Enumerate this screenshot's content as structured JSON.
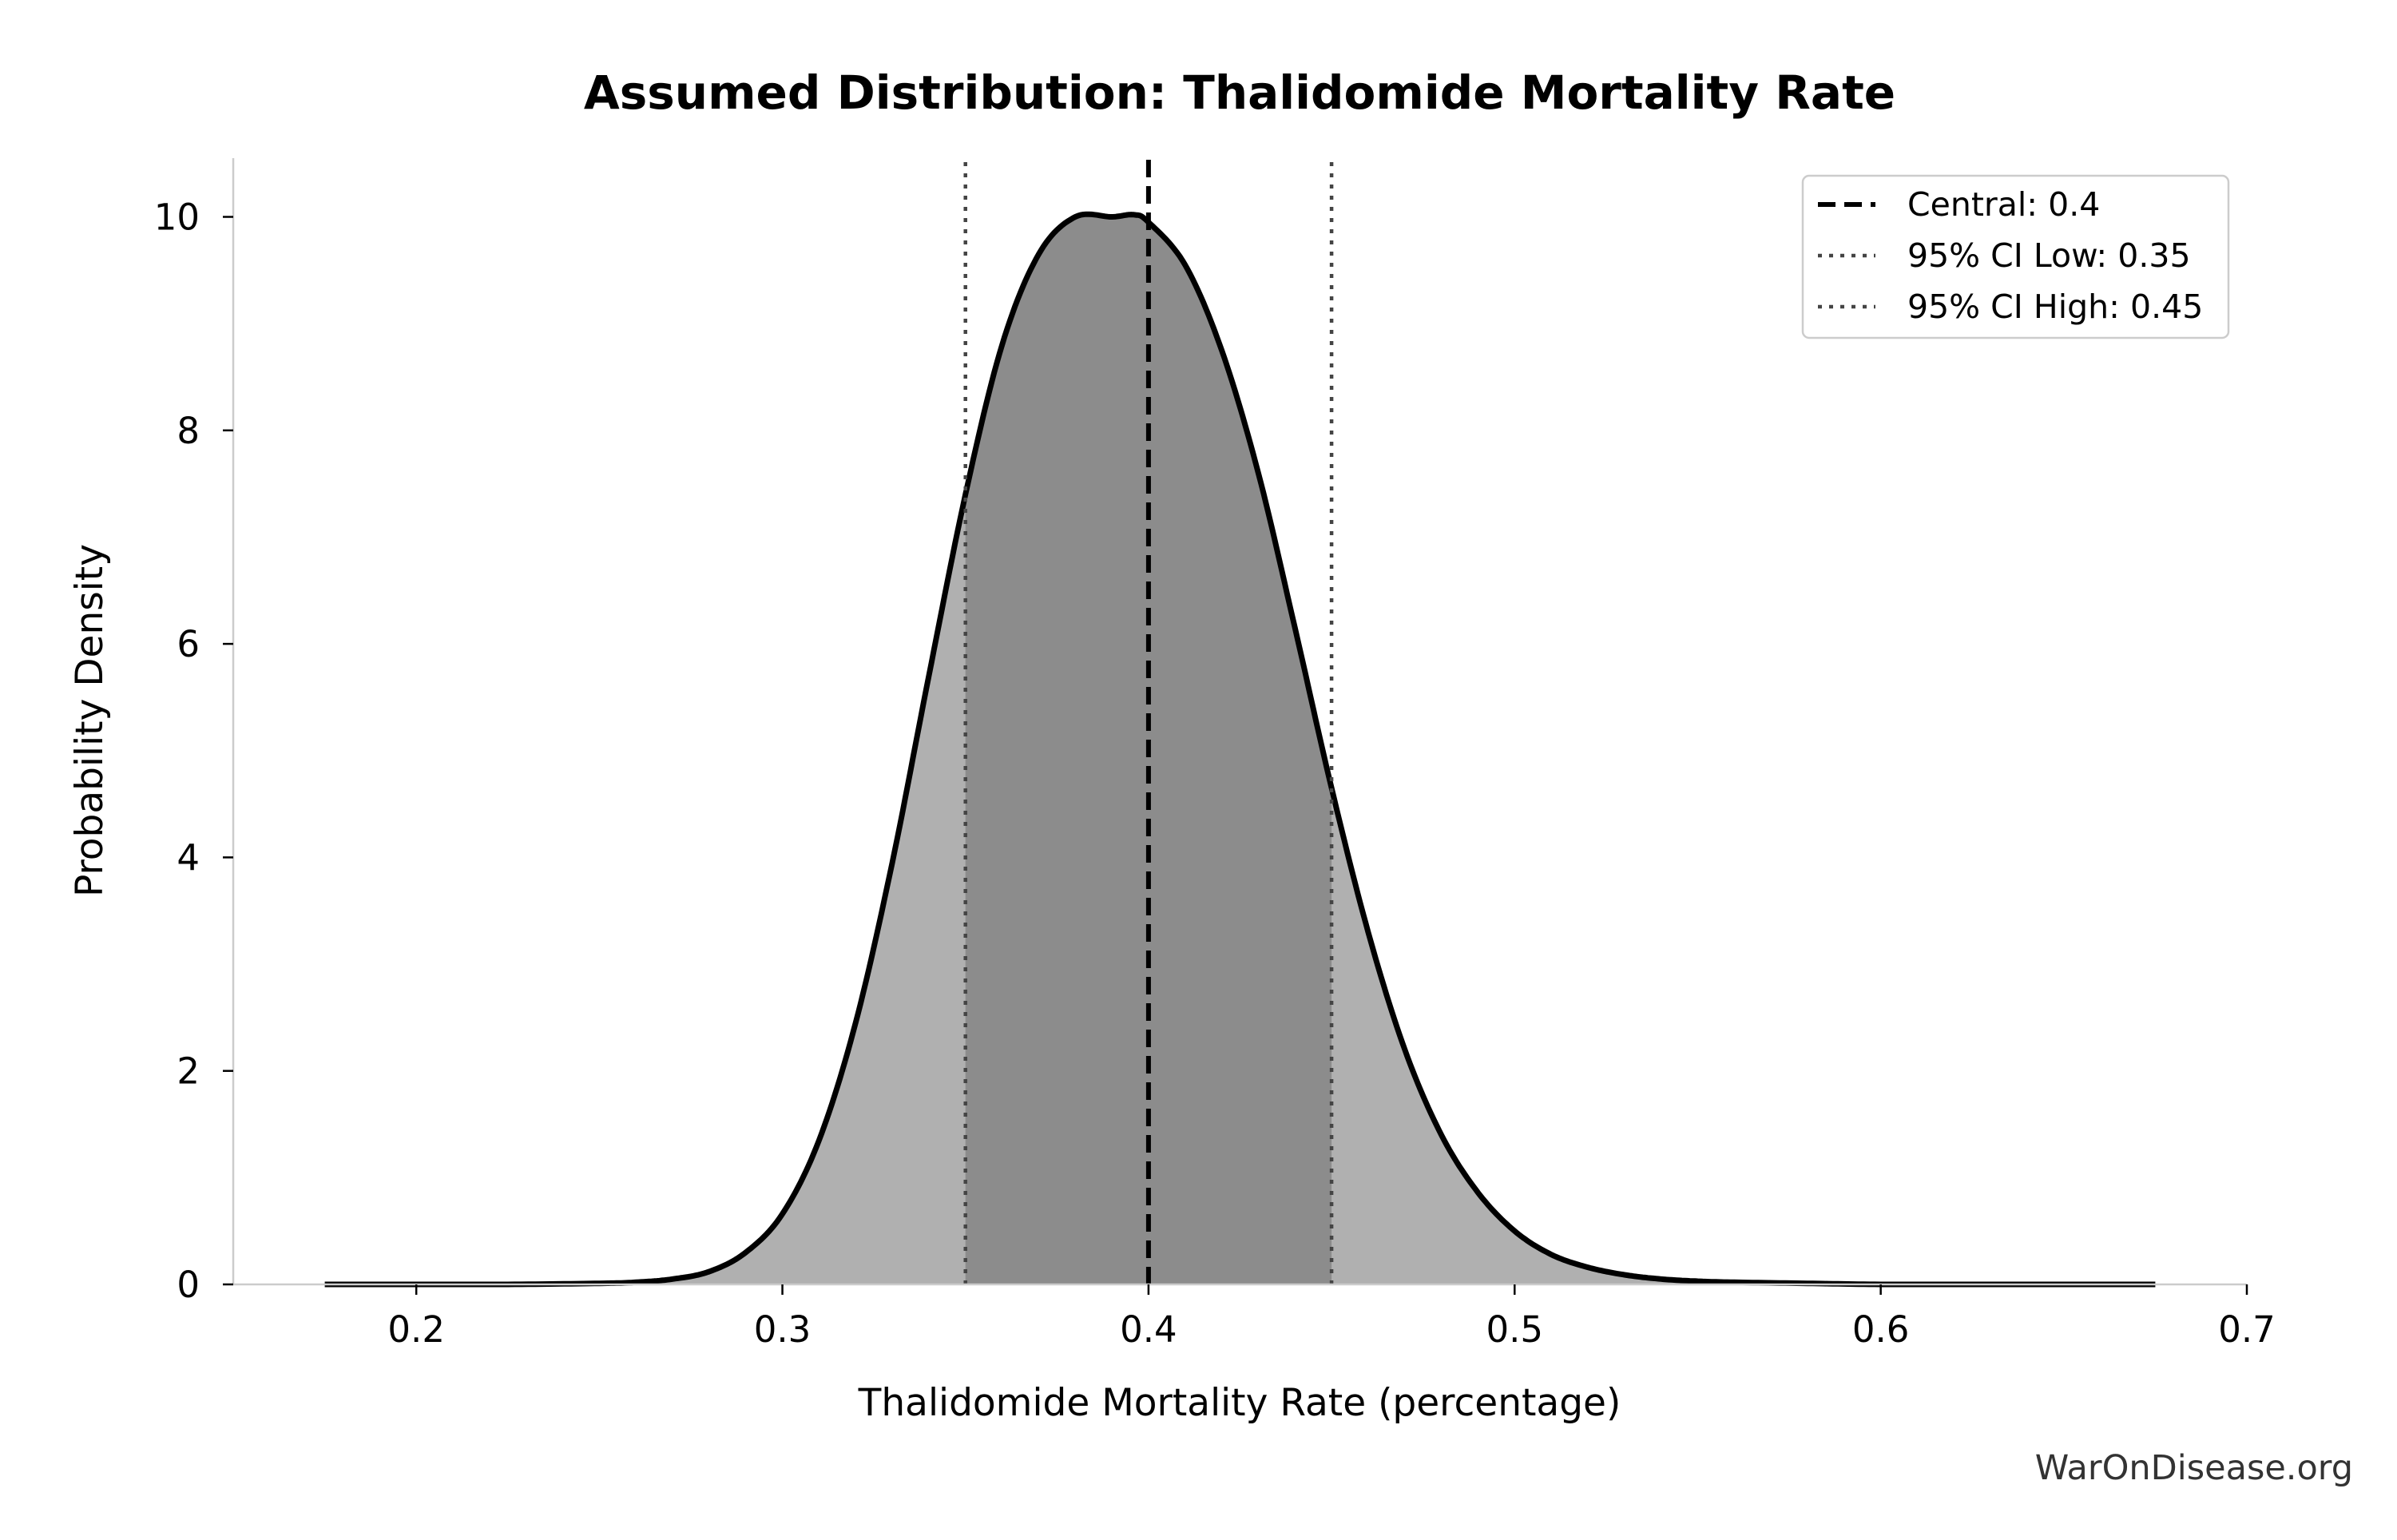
{
  "chart_data": {
    "type": "area",
    "title": "Assumed Distribution: Thalidomide Mortality Rate",
    "xlabel": "Thalidomide Mortality Rate (percentage)",
    "ylabel": "Probability Density",
    "xlim": [
      0.15,
      0.7
    ],
    "ylim": [
      0,
      10.55
    ],
    "xticks": [
      0.2,
      0.3,
      0.4,
      0.5,
      0.6,
      0.7
    ],
    "xtick_labels": [
      "0.2",
      "0.3",
      "0.4",
      "0.5",
      "0.6",
      "0.7"
    ],
    "yticks": [
      0,
      2,
      4,
      6,
      8,
      10
    ],
    "ytick_labels": [
      "0",
      "2",
      "4",
      "6",
      "8",
      "10"
    ],
    "grid": false,
    "legend_position": "top-right",
    "x": [
      0.175,
      0.2,
      0.225,
      0.25,
      0.26,
      0.27,
      0.28,
      0.29,
      0.3,
      0.31,
      0.32,
      0.33,
      0.34,
      0.35,
      0.36,
      0.37,
      0.38,
      0.39,
      0.396,
      0.4,
      0.41,
      0.42,
      0.43,
      0.44,
      0.45,
      0.46,
      0.47,
      0.48,
      0.49,
      0.5,
      0.51,
      0.52,
      0.53,
      0.54,
      0.55,
      0.56,
      0.58,
      0.6,
      0.625,
      0.65,
      0.675
    ],
    "series": [
      {
        "values": [
          0.0,
          0.0,
          0.0,
          0.01,
          0.02,
          0.05,
          0.12,
          0.3,
          0.66,
          1.35,
          2.45,
          3.95,
          5.7,
          7.4,
          8.8,
          9.65,
          10.0,
          10.0,
          10.02,
          9.95,
          9.55,
          8.75,
          7.6,
          6.15,
          4.65,
          3.3,
          2.2,
          1.4,
          0.86,
          0.5,
          0.28,
          0.16,
          0.09,
          0.05,
          0.03,
          0.02,
          0.01,
          0.0,
          0.0,
          0.0,
          0.0
        ],
        "color": "#000000",
        "fill_outer": "#b0b0b0",
        "fill_inner": "#8c8c8c"
      }
    ],
    "ci_fill_range": [
      0.35,
      0.45
    ],
    "reference_lines": [
      {
        "label": "Central: 0.4",
        "x": 0.4,
        "style": "dashed",
        "color": "#000000"
      },
      {
        "label": "95% CI Low: 0.35",
        "x": 0.35,
        "style": "dotted",
        "color": "#444444"
      },
      {
        "label": "95% CI High: 0.45",
        "x": 0.45,
        "style": "dotted",
        "color": "#444444"
      }
    ]
  },
  "watermark": "WarOnDisease.org"
}
